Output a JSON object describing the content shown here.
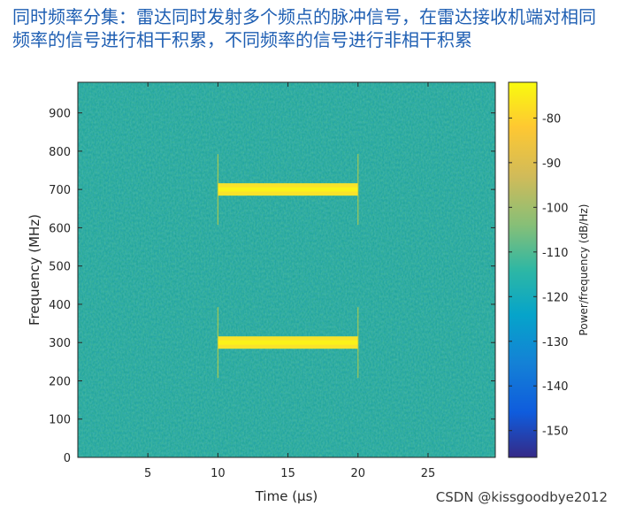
{
  "heading": "同时频率分集：雷达同时发射多个频点的脉冲信号，在雷达接收机端对相同频率的信号进行相干积累，不同频率的信号进行非相干积累",
  "watermark": "CSDN @kissgoodbye2012",
  "colors": {
    "noise": "#22a59a",
    "signal": "#f9e32b",
    "edge": "#cfd23a"
  },
  "chart_data": {
    "type": "heatmap",
    "title": "",
    "xlabel": "Time (μs)",
    "ylabel": "Frequency (MHz)",
    "xlim": [
      0,
      29.8
    ],
    "ylim": [
      0,
      980
    ],
    "xticks": [
      5,
      10,
      15,
      20,
      25
    ],
    "yticks": [
      0,
      100,
      200,
      300,
      400,
      500,
      600,
      700,
      800,
      900
    ],
    "grid": false,
    "colorbar": {
      "label": "Power/frequency (dB/Hz)",
      "range": [
        -156,
        -72
      ],
      "ticks": [
        -80,
        -90,
        -100,
        -110,
        -120,
        -130,
        -140,
        -150
      ],
      "colormap": "parula"
    },
    "background_level_db": -117,
    "signals": [
      {
        "t_start": 10,
        "t_end": 20,
        "frequency": 700,
        "level_db": -76
      },
      {
        "t_start": 10,
        "t_end": 20,
        "frequency": 300,
        "level_db": -76
      }
    ]
  }
}
